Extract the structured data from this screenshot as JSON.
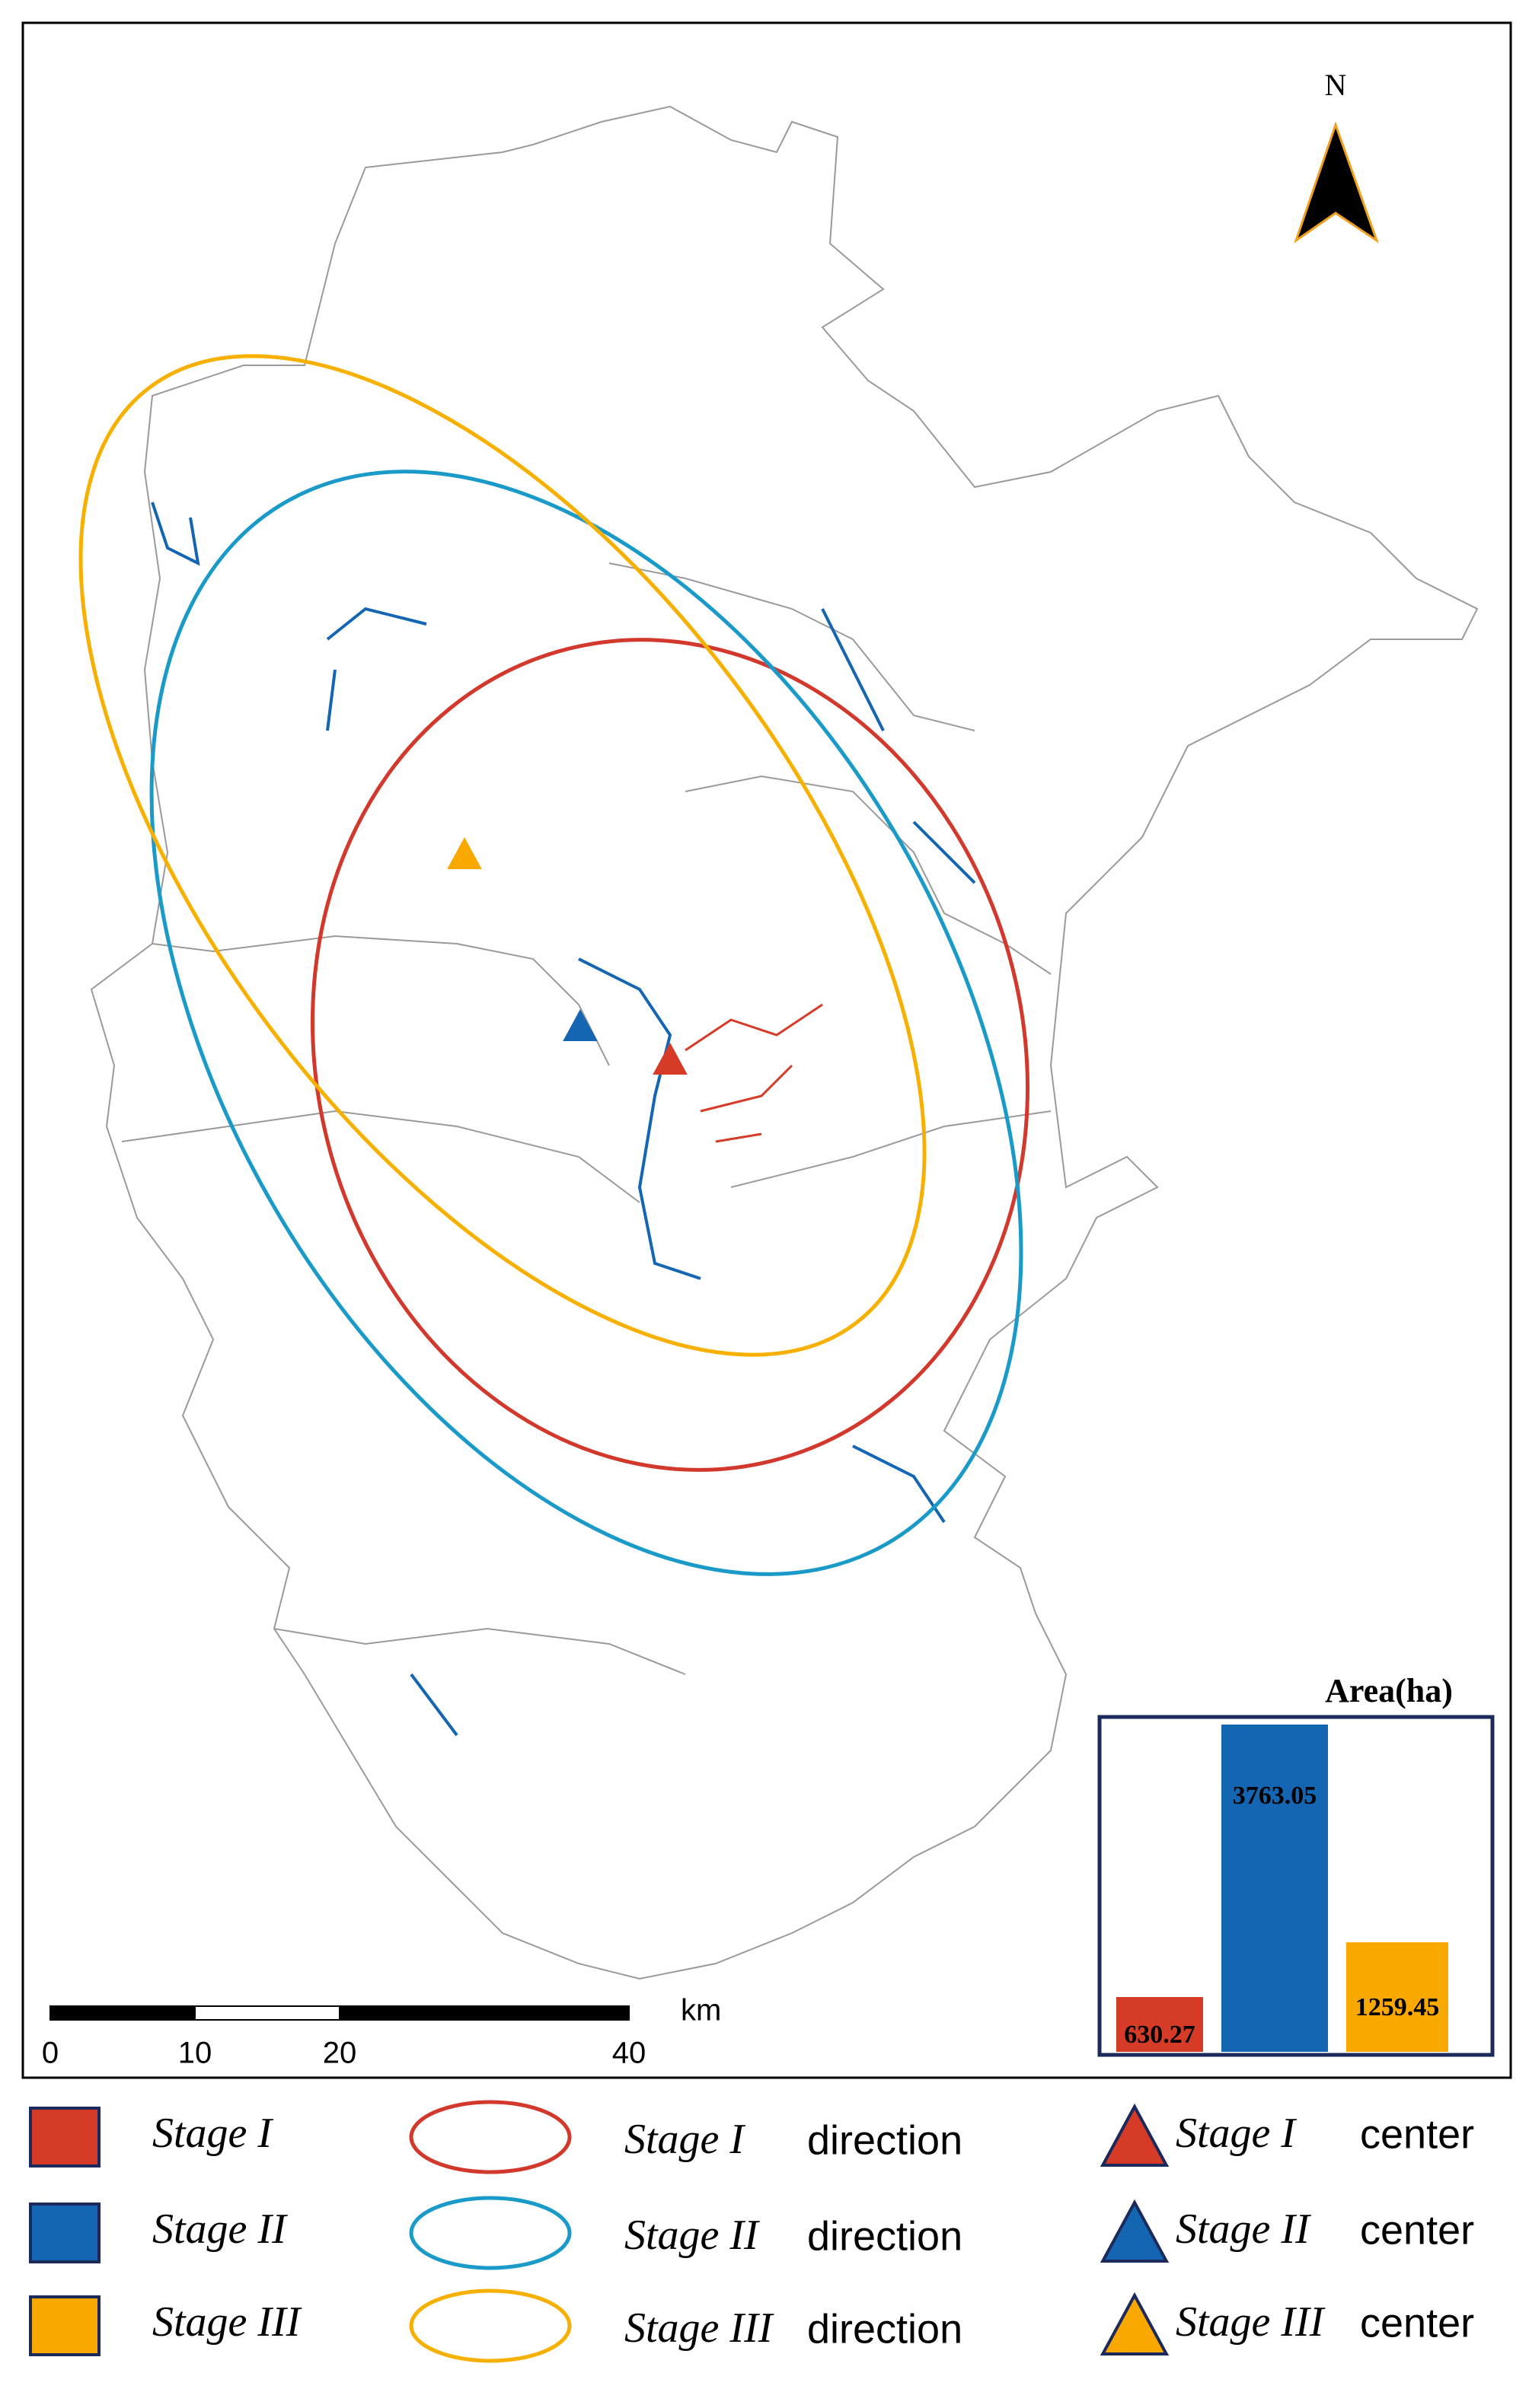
{
  "north_label": "N",
  "scale_bar": {
    "unit": "km",
    "ticks": [
      0,
      10,
      20,
      40
    ]
  },
  "chart_data": {
    "type": "bar",
    "title": "Area(ha)",
    "values": [
      630.27,
      3763.05,
      1259.45
    ],
    "colors": [
      "#d63b27",
      "#1466b3",
      "#f9a800"
    ]
  },
  "legend": {
    "areas": [
      {
        "label": "Stage I",
        "color": "#d63b27"
      },
      {
        "label": "Stage II",
        "color": "#1466b3"
      },
      {
        "label": "Stage III",
        "color": "#f9a800"
      }
    ],
    "directions": [
      {
        "label": "Stage I",
        "suffix": "direction",
        "color": "#d2382b"
      },
      {
        "label": "Stage II",
        "suffix": "direction",
        "color": "#1a9ac9"
      },
      {
        "label": "Stage III",
        "suffix": "direction",
        "color": "#f7b000"
      }
    ],
    "centers": [
      {
        "label": "Stage I",
        "suffix": "center",
        "color": "#d63b27"
      },
      {
        "label": "Stage II",
        "suffix": "center",
        "color": "#1466b3"
      },
      {
        "label": "Stage III",
        "suffix": "center",
        "color": "#f9a800"
      }
    ]
  }
}
